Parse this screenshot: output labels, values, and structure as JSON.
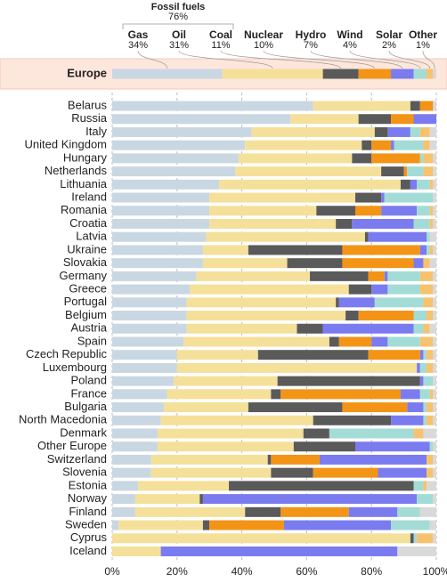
{
  "chart_data": {
    "type": "stacked_bar",
    "group": {
      "label": "Fossil fuels",
      "value": 76,
      "value_label": "76%"
    },
    "highlight": {
      "category": "Europe",
      "values": [
        34,
        31,
        11,
        10,
        7,
        4,
        2,
        1
      ],
      "value_labels": [
        "34%",
        "31%",
        "11%",
        "10%",
        "7%",
        "4%",
        "2%",
        "1%"
      ]
    },
    "categories": [
      "Belarus",
      "Russia",
      "Italy",
      "United Kingdom",
      "Hungary",
      "Netherlands",
      "Lithuania",
      "Ireland",
      "Romania",
      "Croatia",
      "Latvia",
      "Ukraine",
      "Slovakia",
      "Germany",
      "Greece",
      "Portugal",
      "Belgium",
      "Austria",
      "Spain",
      "Czech Republic",
      "Luxembourg",
      "Poland",
      "France",
      "Bulgaria",
      "North Macedonia",
      "Denmark",
      "Other Europe",
      "Switzerland",
      "Slovenia",
      "Estonia",
      "Norway",
      "Finland",
      "Sweden",
      "Cyprus",
      "Iceland"
    ],
    "series": [
      {
        "name": "Gas",
        "color": "#c9d7e3",
        "values": [
          62,
          55,
          43,
          41,
          39,
          38,
          33,
          30,
          30,
          30,
          29,
          28,
          28,
          26,
          24,
          23,
          23,
          23,
          22,
          20,
          20,
          19,
          17,
          16,
          15,
          14,
          14,
          12,
          12,
          8,
          7,
          7,
          2,
          0,
          0
        ]
      },
      {
        "name": "Oil",
        "color": "#f5e09a",
        "values": [
          30,
          21,
          38,
          36,
          35,
          45,
          56,
          45,
          33,
          39,
          49,
          14,
          26,
          35,
          49,
          46,
          49,
          34,
          45,
          25,
          74,
          32,
          32,
          26,
          47,
          45,
          42,
          36,
          37,
          28,
          20,
          34,
          26,
          92,
          15
        ]
      },
      {
        "name": "Coal",
        "color": "#5a5a5a",
        "values": [
          3,
          10,
          4,
          3,
          6,
          7,
          3,
          8,
          12,
          5,
          1,
          29,
          17,
          18,
          7,
          1,
          4,
          8,
          3,
          34,
          0,
          44,
          3,
          29,
          24,
          8,
          19,
          1,
          13,
          57,
          1,
          11,
          2,
          1,
          0
        ]
      },
      {
        "name": "Nuclear",
        "color": "#f39416",
        "values": [
          4,
          7,
          0,
          6,
          15,
          1,
          0,
          0,
          8,
          0,
          0,
          24,
          22,
          5,
          0,
          0,
          17,
          0,
          10,
          16,
          0,
          0,
          37,
          20,
          0,
          0,
          0,
          15,
          20,
          0,
          0,
          21,
          23,
          0,
          0
        ]
      },
      {
        "name": "Hydro",
        "color": "#7b7bf0",
        "values": [
          0,
          7,
          7,
          1,
          0,
          0,
          2,
          1,
          11,
          19,
          18,
          2,
          3,
          1,
          5,
          11,
          0,
          28,
          5,
          1,
          1,
          1,
          6,
          5,
          10,
          0,
          23,
          33,
          15,
          0,
          66,
          15,
          33,
          0,
          73
        ]
      },
      {
        "name": "Wind",
        "color": "#a3dcd6",
        "values": [
          0,
          0,
          3,
          9,
          1,
          5,
          4,
          15,
          4,
          5,
          1,
          1,
          0,
          10,
          10,
          15,
          4,
          3,
          10,
          1,
          2,
          3,
          3,
          1,
          1,
          26,
          1,
          0,
          0,
          3,
          5,
          7,
          12,
          1,
          0
        ]
      },
      {
        "name": "Solar",
        "color": "#f7c26e",
        "values": [
          0,
          0,
          3,
          2,
          3,
          3,
          1,
          0,
          1,
          1,
          0,
          1,
          2,
          4,
          4,
          3,
          2,
          2,
          4,
          2,
          2,
          0,
          1,
          2,
          2,
          3,
          0,
          2,
          2,
          1,
          0,
          0,
          0,
          5,
          0
        ]
      },
      {
        "name": "Other",
        "color": "#d9d9d9",
        "values": [
          1,
          0,
          2,
          2,
          1,
          1,
          1,
          1,
          1,
          1,
          2,
          1,
          2,
          1,
          1,
          1,
          1,
          2,
          1,
          1,
          1,
          1,
          1,
          1,
          1,
          4,
          1,
          1,
          1,
          3,
          1,
          5,
          2,
          1,
          12
        ]
      }
    ],
    "xlim": [
      0,
      100
    ],
    "xticks": [
      {
        "value": 0,
        "label": "0%"
      },
      {
        "value": 20,
        "label": "20%"
      },
      {
        "value": 40,
        "label": "40%"
      },
      {
        "value": 60,
        "label": "60%"
      },
      {
        "value": 80,
        "label": "80%"
      },
      {
        "value": 100,
        "label": "100%"
      }
    ],
    "grid": true
  }
}
